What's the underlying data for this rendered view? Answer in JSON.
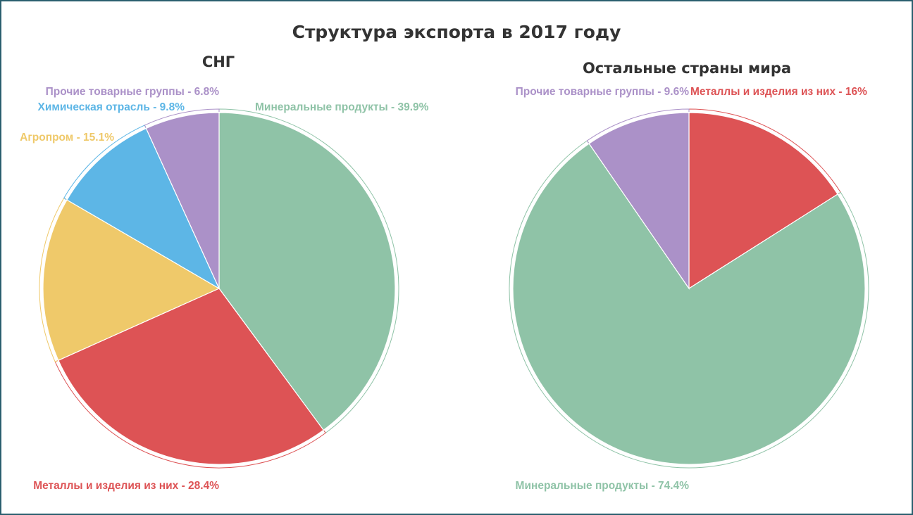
{
  "chart_data": {
    "title": "Структура экспорта в 2017 году",
    "charts": [
      {
        "type": "pie",
        "title": "СНГ",
        "slices": [
          {
            "name": "Минеральные продукты",
            "label": "Минеральные продукты - 39.9%",
            "value": 39.9,
            "color": "#8fc3a7"
          },
          {
            "name": "Металлы и изделия из них",
            "label": "Металлы и изделия из них - 28.4%",
            "value": 28.4,
            "color": "#dd5355"
          },
          {
            "name": "Агропром",
            "label": "Агропром - 15.1%",
            "value": 15.1,
            "color": "#efc96a"
          },
          {
            "name": "Химическая отрасль",
            "label": "Химическая отрасль - 9.8%",
            "value": 9.8,
            "color": "#5db6e6"
          },
          {
            "name": "Прочие товарные группы",
            "label": "Прочие товарные группы - 6.8%",
            "value": 6.8,
            "color": "#ab91c8"
          }
        ]
      },
      {
        "type": "pie",
        "title": "Остальные страны мира",
        "slices": [
          {
            "name": "Металлы и изделия из них",
            "label": "Металлы и изделия из них - 16%",
            "value": 16,
            "color": "#dd5355"
          },
          {
            "name": "Минеральные продукты",
            "label": "Минеральные продукты - 74.4%",
            "value": 74.4,
            "color": "#8fc3a7"
          },
          {
            "name": "Прочие товарные группы",
            "label": "Прочие товарные группы - 9.6%",
            "value": 9.6,
            "color": "#ab91c8"
          }
        ]
      }
    ]
  }
}
